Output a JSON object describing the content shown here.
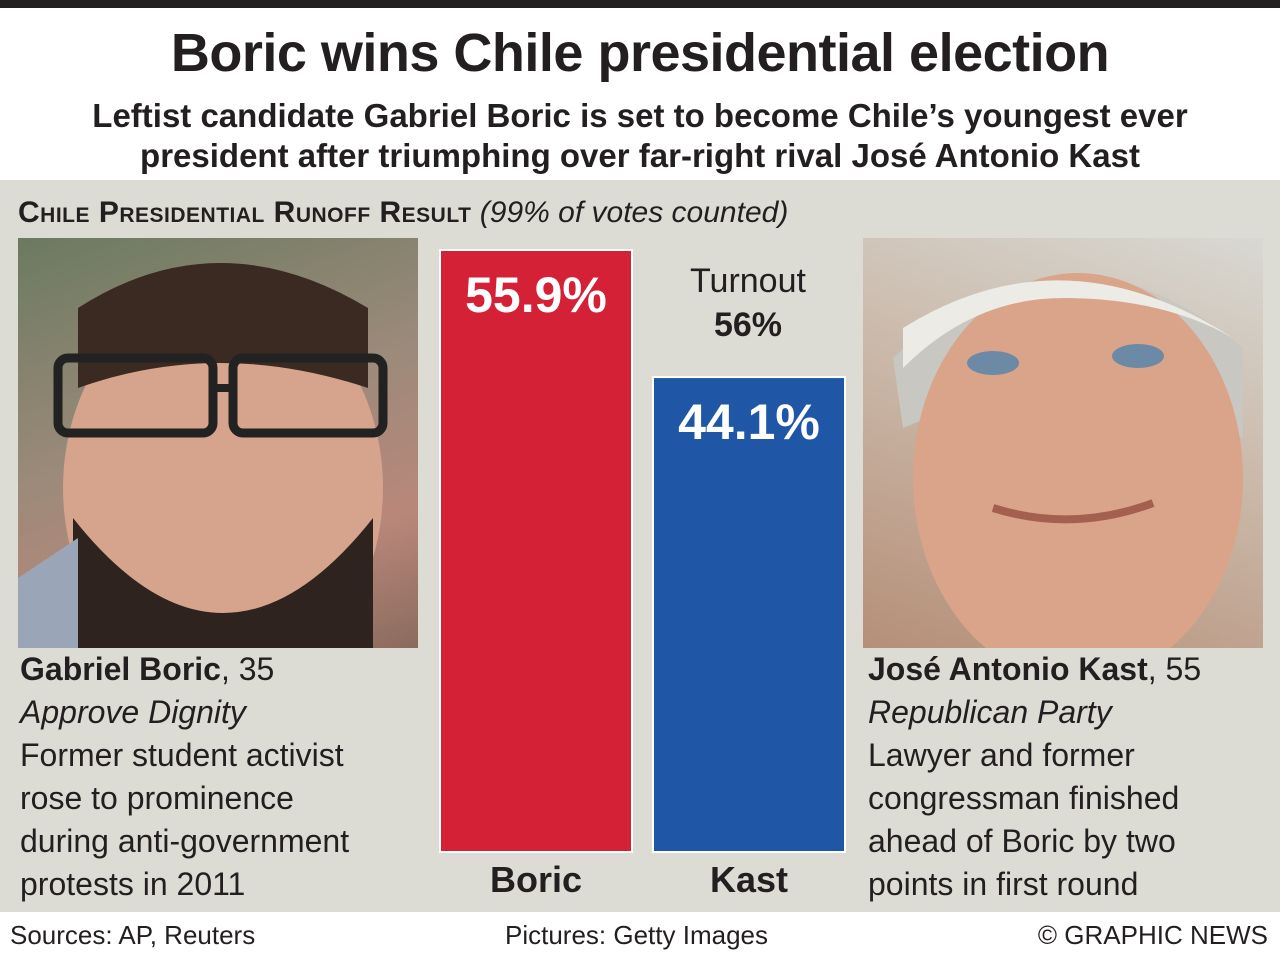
{
  "header": {
    "title": "Boric wins Chile presidential election",
    "subtitle_line1": "Leftist candidate Gabriel Boric is set to become Chile’s youngest ever",
    "subtitle_line2": "president after triumphing over far-right rival José Antonio Kast"
  },
  "section": {
    "heading": "Chile Presidential Runoff Result",
    "note": "(99% of votes counted)"
  },
  "turnout": {
    "label": "Turnout",
    "value": "56%"
  },
  "candidates": [
    {
      "name": "Gabriel Boric",
      "age": ", 35",
      "party": "Approve Dignity",
      "bio": [
        "Former student activist",
        "rose to prominence",
        "during anti-government",
        "protests in 2011"
      ]
    },
    {
      "name": "José Antonio Kast",
      "age": ", 55",
      "party": "Republican Party",
      "bio": [
        "Lawyer and former",
        "congressman finished",
        "ahead of Boric by two",
        "points in first round"
      ]
    }
  ],
  "chart_data": {
    "type": "bar",
    "categories": [
      "Boric",
      "Kast"
    ],
    "values": [
      55.9,
      44.1
    ],
    "value_labels": [
      "55.9%",
      "44.1%"
    ],
    "unit": "%",
    "colors": [
      "#d42136",
      "#1f56a5"
    ]
  },
  "footer": {
    "sources": "Sources: AP, Reuters",
    "pictures": "Pictures: Getty Images",
    "credit": "© GRAPHIC NEWS"
  }
}
